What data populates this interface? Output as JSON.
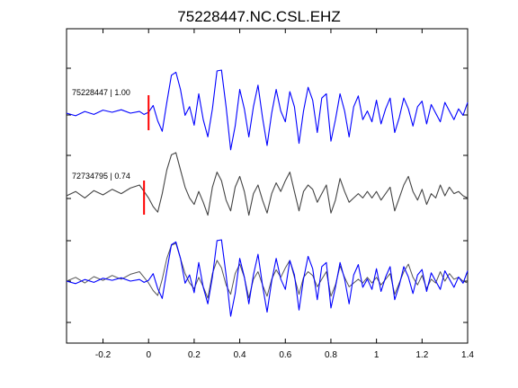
{
  "chart_data": {
    "type": "line",
    "title": "75228447.NC.CSL.EHZ",
    "xlabel": "",
    "ylabel": "",
    "xlim": [
      -0.36,
      1.4
    ],
    "x_ticks": [
      "-0.2",
      "0",
      "0.2",
      "0.4",
      "0.6",
      "0.8",
      "1",
      "1.2",
      "1.4"
    ],
    "x_tick_values": [
      -0.2,
      0,
      0.2,
      0.4,
      0.6,
      0.8,
      1.0,
      1.2,
      1.4
    ],
    "grid": false,
    "traces": [
      {
        "label": "75228447 | 1.00",
        "color": "#0000ff",
        "pick_time": 0.0,
        "pick_color": "#ff0000",
        "points": [
          [
            -0.36,
            0.0
          ],
          [
            -0.32,
            -0.06
          ],
          [
            -0.28,
            0.04
          ],
          [
            -0.24,
            -0.03
          ],
          [
            -0.2,
            0.07
          ],
          [
            -0.16,
            0.02
          ],
          [
            -0.12,
            0.08
          ],
          [
            -0.08,
            0.0
          ],
          [
            -0.04,
            0.04
          ],
          [
            -0.02,
            -0.03
          ],
          [
            0.0,
            0.02
          ],
          [
            0.02,
            0.18
          ],
          [
            0.04,
            -0.18
          ],
          [
            0.06,
            -0.42
          ],
          [
            0.08,
            0.25
          ],
          [
            0.1,
            0.88
          ],
          [
            0.12,
            0.95
          ],
          [
            0.14,
            0.55
          ],
          [
            0.16,
            -0.05
          ],
          [
            0.18,
            0.15
          ],
          [
            0.2,
            -0.28
          ],
          [
            0.22,
            0.45
          ],
          [
            0.24,
            -0.15
          ],
          [
            0.26,
            -0.55
          ],
          [
            0.28,
            0.1
          ],
          [
            0.3,
            0.98
          ],
          [
            0.32,
            1.0
          ],
          [
            0.34,
            0.15
          ],
          [
            0.36,
            -0.85
          ],
          [
            0.38,
            -0.3
          ],
          [
            0.4,
            0.55
          ],
          [
            0.42,
            0.1
          ],
          [
            0.44,
            -0.55
          ],
          [
            0.46,
            0.15
          ],
          [
            0.48,
            0.65
          ],
          [
            0.5,
            -0.1
          ],
          [
            0.52,
            -0.75
          ],
          [
            0.54,
            0.0
          ],
          [
            0.56,
            0.55
          ],
          [
            0.58,
            0.05
          ],
          [
            0.6,
            -0.2
          ],
          [
            0.62,
            0.5
          ],
          [
            0.64,
            0.15
          ],
          [
            0.66,
            -0.7
          ],
          [
            0.68,
            0.05
          ],
          [
            0.7,
            0.6
          ],
          [
            0.72,
            0.3
          ],
          [
            0.74,
            -0.45
          ],
          [
            0.76,
            0.35
          ],
          [
            0.78,
            0.45
          ],
          [
            0.8,
            -0.65
          ],
          [
            0.82,
            -0.15
          ],
          [
            0.84,
            0.45
          ],
          [
            0.86,
            0.05
          ],
          [
            0.88,
            -0.55
          ],
          [
            0.9,
            0.15
          ],
          [
            0.92,
            0.4
          ],
          [
            0.94,
            -0.15
          ],
          [
            0.96,
            0.05
          ],
          [
            0.98,
            -0.2
          ],
          [
            1.0,
            0.3
          ],
          [
            1.02,
            -0.25
          ],
          [
            1.04,
            0.1
          ],
          [
            1.06,
            0.35
          ],
          [
            1.08,
            -0.45
          ],
          [
            1.1,
            -0.1
          ],
          [
            1.12,
            0.35
          ],
          [
            1.14,
            0.1
          ],
          [
            1.16,
            -0.3
          ],
          [
            1.18,
            0.15
          ],
          [
            1.2,
            0.28
          ],
          [
            1.22,
            -0.25
          ],
          [
            1.24,
            0.2
          ],
          [
            1.26,
            0.0
          ],
          [
            1.28,
            -0.2
          ],
          [
            1.3,
            0.25
          ],
          [
            1.32,
            0.05
          ],
          [
            1.34,
            -0.15
          ],
          [
            1.36,
            0.1
          ],
          [
            1.38,
            -0.05
          ],
          [
            1.4,
            0.25
          ]
        ]
      },
      {
        "label": "72734795 | 0.74",
        "color": "#444444",
        "pick_time": -0.02,
        "pick_color": "#ff0000",
        "points": [
          [
            -0.36,
            0.0
          ],
          [
            -0.32,
            0.1
          ],
          [
            -0.28,
            -0.05
          ],
          [
            -0.24,
            0.12
          ],
          [
            -0.2,
            0.02
          ],
          [
            -0.16,
            0.15
          ],
          [
            -0.12,
            0.05
          ],
          [
            -0.08,
            0.18
          ],
          [
            -0.04,
            0.25
          ],
          [
            -0.02,
            0.1
          ],
          [
            0.0,
            -0.05
          ],
          [
            0.02,
            -0.25
          ],
          [
            0.04,
            -0.38
          ],
          [
            0.06,
            0.05
          ],
          [
            0.08,
            0.6
          ],
          [
            0.1,
            0.95
          ],
          [
            0.12,
            1.0
          ],
          [
            0.14,
            0.6
          ],
          [
            0.16,
            0.2
          ],
          [
            0.18,
            -0.05
          ],
          [
            0.2,
            -0.2
          ],
          [
            0.22,
            0.1
          ],
          [
            0.24,
            -0.15
          ],
          [
            0.26,
            -0.45
          ],
          [
            0.28,
            0.2
          ],
          [
            0.3,
            0.55
          ],
          [
            0.32,
            0.35
          ],
          [
            0.34,
            -0.1
          ],
          [
            0.36,
            -0.35
          ],
          [
            0.38,
            0.2
          ],
          [
            0.4,
            0.45
          ],
          [
            0.42,
            0.1
          ],
          [
            0.44,
            -0.45
          ],
          [
            0.46,
            0.05
          ],
          [
            0.48,
            0.25
          ],
          [
            0.5,
            -0.1
          ],
          [
            0.52,
            -0.4
          ],
          [
            0.54,
            0.05
          ],
          [
            0.56,
            0.3
          ],
          [
            0.58,
            0.1
          ],
          [
            0.6,
            0.35
          ],
          [
            0.62,
            0.55
          ],
          [
            0.64,
            0.1
          ],
          [
            0.66,
            -0.35
          ],
          [
            0.68,
            0.1
          ],
          [
            0.7,
            0.25
          ],
          [
            0.72,
            0.15
          ],
          [
            0.74,
            -0.15
          ],
          [
            0.76,
            0.05
          ],
          [
            0.78,
            0.25
          ],
          [
            0.8,
            -0.4
          ],
          [
            0.82,
            -0.1
          ],
          [
            0.84,
            0.4
          ],
          [
            0.86,
            0.1
          ],
          [
            0.88,
            -0.15
          ],
          [
            0.9,
            -0.05
          ],
          [
            0.92,
            0.05
          ],
          [
            0.94,
            -0.05
          ],
          [
            0.96,
            0.1
          ],
          [
            0.98,
            -0.05
          ],
          [
            1.0,
            0.1
          ],
          [
            1.02,
            -0.1
          ],
          [
            1.04,
            0.05
          ],
          [
            1.06,
            0.2
          ],
          [
            1.08,
            -0.35
          ],
          [
            1.1,
            -0.05
          ],
          [
            1.12,
            0.25
          ],
          [
            1.14,
            0.45
          ],
          [
            1.16,
            0.1
          ],
          [
            1.18,
            -0.1
          ],
          [
            1.2,
            0.15
          ],
          [
            1.22,
            -0.2
          ],
          [
            1.24,
            0.05
          ],
          [
            1.26,
            -0.05
          ],
          [
            1.28,
            0.25
          ],
          [
            1.3,
            0.0
          ],
          [
            1.32,
            0.2
          ],
          [
            1.34,
            0.05
          ],
          [
            1.36,
            0.1
          ],
          [
            1.38,
            0.0
          ],
          [
            1.4,
            -0.05
          ]
        ]
      }
    ]
  }
}
